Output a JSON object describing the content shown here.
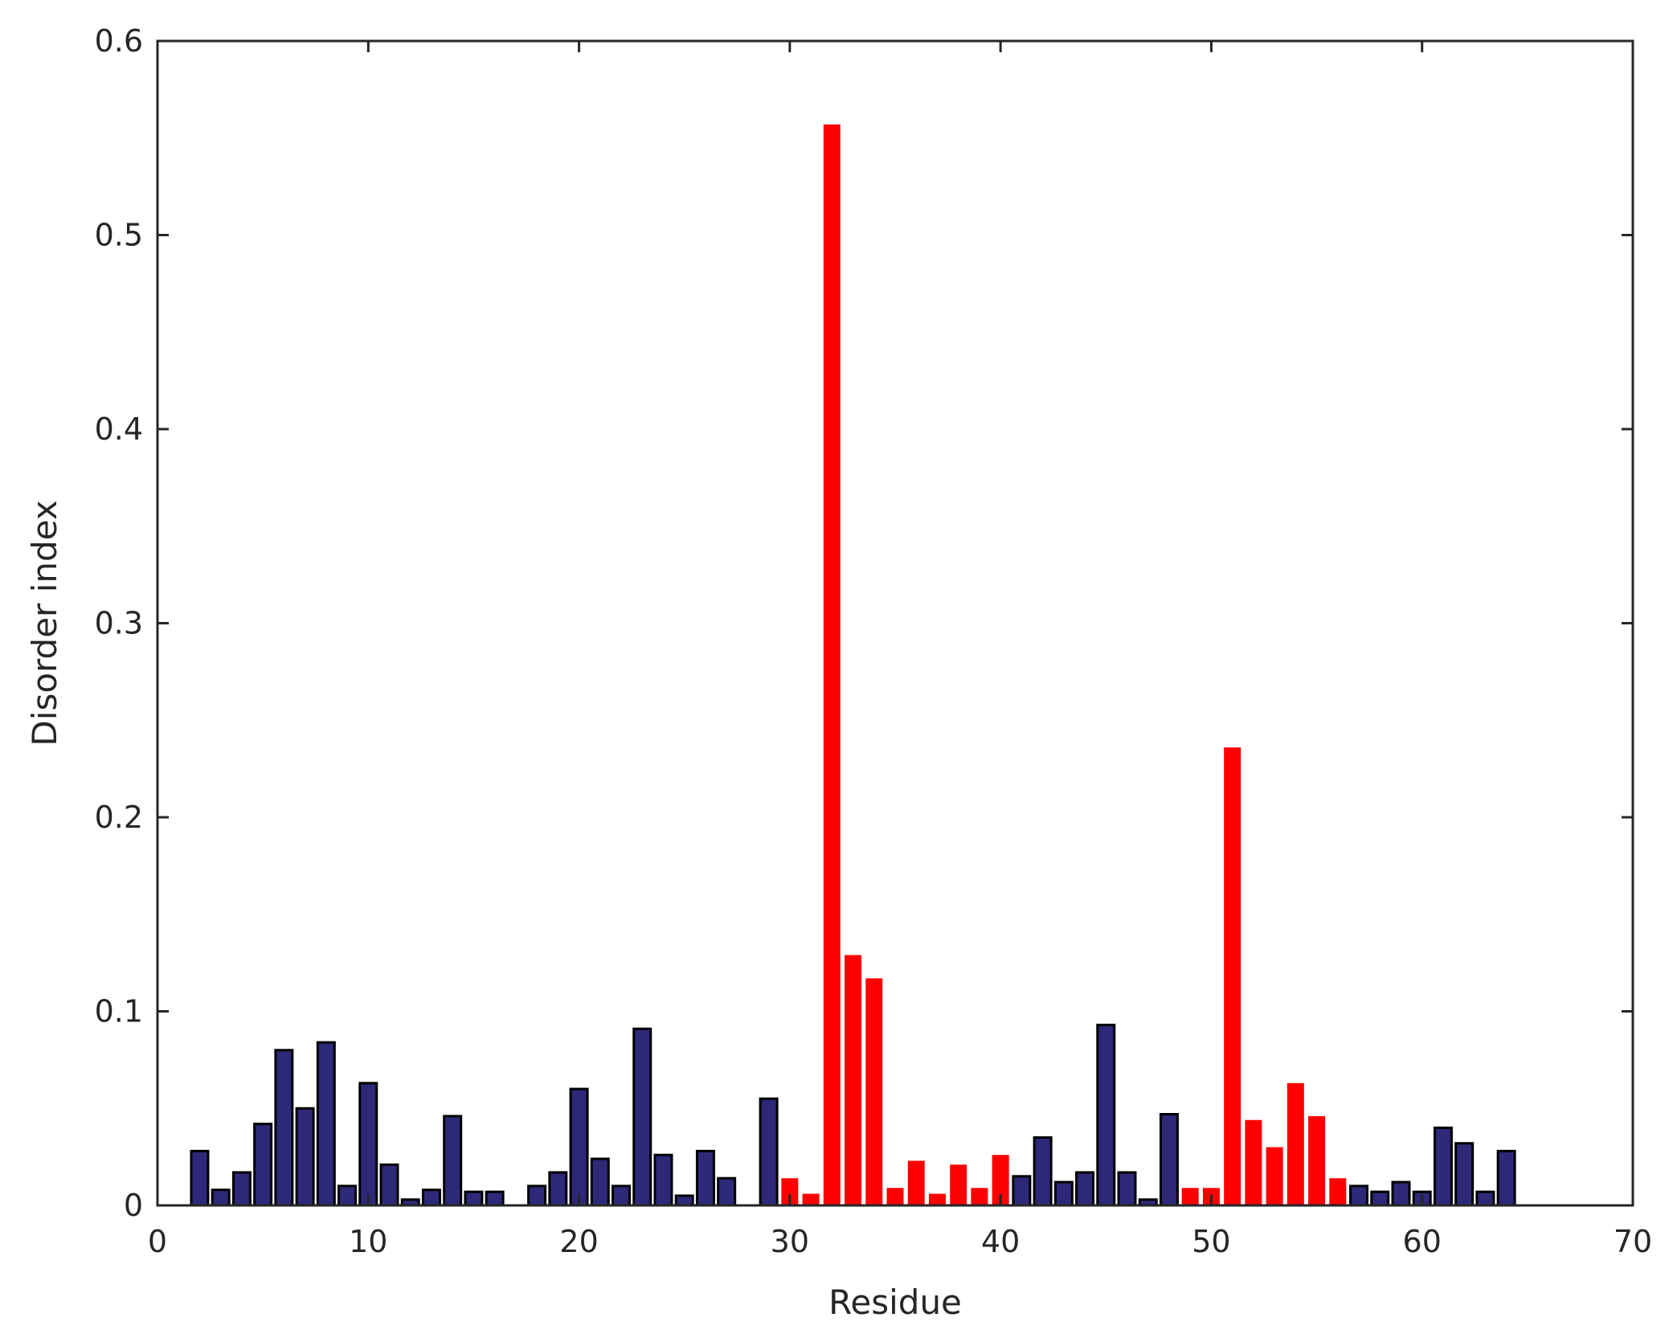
{
  "chart_data": {
    "type": "bar",
    "title": "",
    "xlabel": "Residue",
    "ylabel": "Disorder index",
    "xlim": [
      0,
      70
    ],
    "ylim": [
      0,
      0.6
    ],
    "xticks": [
      "0",
      "10",
      "20",
      "30",
      "40",
      "50",
      "60",
      "70"
    ],
    "yticks": [
      "0",
      "0.1",
      "0.2",
      "0.3",
      "0.4",
      "0.5",
      "0.6"
    ],
    "grid": false,
    "colors": {
      "ordered": "#2e2878",
      "disordered": "#ff0000",
      "edge": "#000000"
    },
    "series": [
      {
        "color_key": "ordered",
        "x": [
          2,
          3,
          4,
          5,
          6,
          7,
          8,
          9,
          10,
          11,
          12,
          13,
          14,
          15,
          16,
          18,
          19,
          20,
          21,
          22,
          23,
          24,
          25,
          26,
          27,
          29,
          41,
          42,
          43,
          44,
          45,
          46,
          47,
          48,
          57,
          58,
          59,
          60,
          61,
          62,
          63,
          64
        ],
        "values": [
          0.028,
          0.008,
          0.017,
          0.042,
          0.08,
          0.05,
          0.084,
          0.01,
          0.063,
          0.021,
          0.003,
          0.008,
          0.046,
          0.007,
          0.007,
          0.01,
          0.017,
          0.06,
          0.024,
          0.01,
          0.091,
          0.026,
          0.005,
          0.028,
          0.014,
          0.055,
          0.015,
          0.035,
          0.012,
          0.017,
          0.093,
          0.017,
          0.003,
          0.047,
          0.01,
          0.007,
          0.012,
          0.007,
          0.04,
          0.032,
          0.007,
          0.028
        ]
      },
      {
        "color_key": "disordered",
        "x": [
          30,
          31,
          32,
          33,
          34,
          35,
          36,
          37,
          38,
          39,
          40,
          49,
          50,
          51,
          52,
          53,
          54,
          55,
          56
        ],
        "values": [
          0.014,
          0.006,
          0.557,
          0.129,
          0.117,
          0.009,
          0.023,
          0.006,
          0.021,
          0.009,
          0.026,
          0.009,
          0.009,
          0.236,
          0.044,
          0.03,
          0.063,
          0.046,
          0.014
        ]
      }
    ]
  }
}
